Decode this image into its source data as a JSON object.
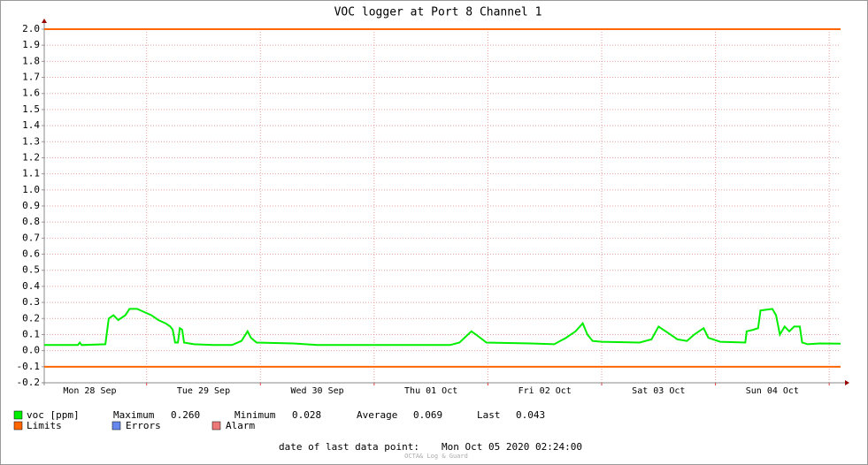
{
  "chart_data": {
    "type": "line",
    "title": "VOC logger at Port 8 Channel 1",
    "x": [
      2.4,
      9.5,
      9.9,
      10.3,
      15.3,
      16.0,
      17.0,
      18.0,
      19.5,
      20.4,
      22.0,
      23.5,
      25.0,
      26.5,
      28.0,
      29.0,
      29.5,
      30.0,
      30.6,
      31.0,
      31.5,
      31.9,
      34.0,
      38.0,
      42.0,
      44.0,
      45.3,
      46.0,
      47.2,
      55.0,
      60.0,
      75.0,
      88.0,
      90.0,
      92.5,
      93.5,
      95.7,
      105.0,
      110.0,
      112.5,
      114.5,
      116.0,
      117.0,
      118.1,
      120.0,
      128.0,
      130.5,
      132.0,
      134.0,
      136.0,
      138.0,
      139.5,
      141.5,
      142.5,
      145.0,
      150.3,
      150.6,
      152.0,
      153.0,
      153.5,
      156.0,
      156.8,
      157.6,
      158.6,
      159.6,
      160.6,
      161.8,
      162.3,
      163.5,
      166.0,
      170.4
    ],
    "series": [
      {
        "name": "voc [ppm]",
        "color": "#00ee00",
        "values": [
          0.035,
          0.035,
          0.05,
          0.035,
          0.04,
          0.2,
          0.22,
          0.19,
          0.22,
          0.26,
          0.26,
          0.24,
          0.22,
          0.19,
          0.17,
          0.15,
          0.13,
          0.05,
          0.05,
          0.14,
          0.13,
          0.05,
          0.04,
          0.035,
          0.035,
          0.06,
          0.12,
          0.08,
          0.05,
          0.045,
          0.035,
          0.035,
          0.035,
          0.05,
          0.12,
          0.1,
          0.05,
          0.045,
          0.04,
          0.08,
          0.12,
          0.17,
          0.1,
          0.06,
          0.055,
          0.05,
          0.07,
          0.15,
          0.11,
          0.07,
          0.06,
          0.1,
          0.14,
          0.08,
          0.055,
          0.05,
          0.12,
          0.13,
          0.14,
          0.25,
          0.26,
          0.22,
          0.1,
          0.15,
          0.12,
          0.15,
          0.15,
          0.05,
          0.04,
          0.045,
          0.043
        ]
      }
    ],
    "limits": {
      "name": "Limits",
      "color": "#ff6600",
      "values": [
        2.0,
        -0.1
      ]
    },
    "other_legend": [
      {
        "name": "Errors",
        "color": "#6688ee"
      },
      {
        "name": "Alarm",
        "color": "#ee7777"
      }
    ],
    "stats": [
      {
        "name": "Maximum",
        "value": 0.26,
        "label": "0.260"
      },
      {
        "name": "Minimum",
        "value": 0.028,
        "label": "0.028"
      },
      {
        "name": "Average",
        "value": 0.069,
        "label": "0.069"
      },
      {
        "name": "Last",
        "value": 0.043,
        "label": "0.043"
      }
    ],
    "xlim": [
      2.4,
      170.4
    ],
    "xticks": [
      {
        "value": 12,
        "label": "Mon 28 Sep"
      },
      {
        "value": 36,
        "label": "Tue 29 Sep"
      },
      {
        "value": 60,
        "label": "Wed 30 Sep"
      },
      {
        "value": 84,
        "label": "Thu 01 Oct"
      },
      {
        "value": 108,
        "label": "Fri 02 Oct"
      },
      {
        "value": 132,
        "label": "Sat 03 Oct"
      },
      {
        "value": 156,
        "label": "Sun 04 Oct"
      }
    ],
    "xgrid": [
      24,
      48,
      72,
      96,
      120,
      144,
      168
    ],
    "ylim": [
      -0.2,
      2.0
    ],
    "yticks": [
      {
        "value": 2.0,
        "label": "2.0"
      },
      1.9,
      1.8,
      1.7,
      1.6,
      1.5,
      1.4,
      1.3,
      1.2,
      1.1,
      {
        "value": 1.0,
        "label": "1.0"
      },
      0.9,
      0.8,
      0.7,
      0.6,
      0.5,
      0.4,
      0.3,
      0.2,
      0.1,
      {
        "value": 0.0,
        "label": "0.0"
      },
      -0.1,
      -0.2
    ],
    "grid": true,
    "footer_label": "date of last data point:",
    "footer_value": "Mon Oct 05 2020 02:24:00",
    "watermark": "OCTA& Log & Guard"
  }
}
